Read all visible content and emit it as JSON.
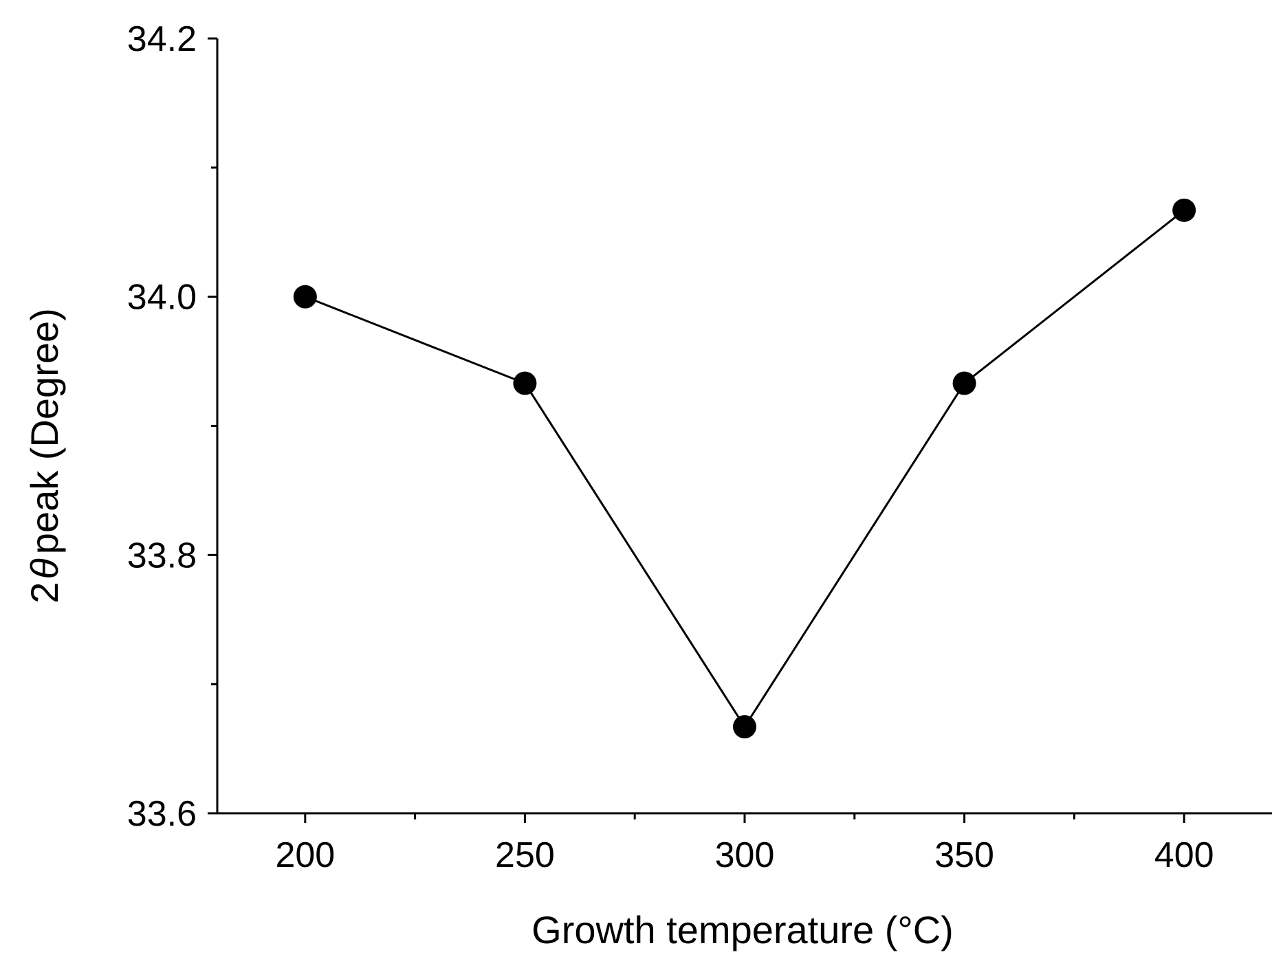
{
  "chart_data": {
    "type": "line",
    "title": "",
    "xlabel": "Growth temperature (°C)",
    "ylabel_prefix": "2",
    "ylabel_symbol": "θ",
    "ylabel_suffix": "peak (Degree)",
    "xlim": [
      180,
      420
    ],
    "ylim": [
      33.6,
      34.2
    ],
    "x_ticks": [
      200,
      250,
      300,
      350,
      400
    ],
    "x_tick_labels": [
      "200",
      "250",
      "300",
      "350",
      "400"
    ],
    "x_minor_ticks": [
      225,
      275,
      325,
      375
    ],
    "y_ticks": [
      33.6,
      33.8,
      34.0,
      34.2
    ],
    "y_tick_labels": [
      "33.6",
      "33.8",
      "34.0",
      "34.2"
    ],
    "y_minor_ticks": [
      33.7,
      33.9,
      34.1
    ],
    "grid": false,
    "legend": "none",
    "series": [
      {
        "name": "2θ peak",
        "color": "#000000",
        "marker": "circle",
        "x": [
          200,
          250,
          300,
          350,
          400
        ],
        "y": [
          34.0,
          33.933,
          33.667,
          33.933,
          34.067
        ]
      }
    ]
  }
}
